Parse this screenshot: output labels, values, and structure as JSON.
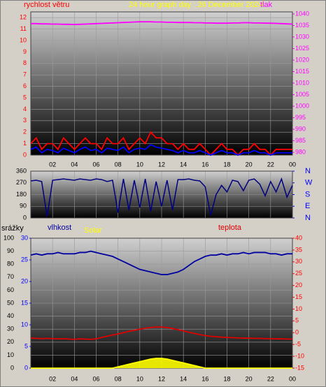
{
  "chart_data": [
    {
      "type": "line",
      "title": "24 hour graph day : 26 December 2024",
      "ylabel": "rychlost větru",
      "y2label": "tlak",
      "title_color": "#ffff00",
      "ylabel_color": "#ff0000",
      "y2label_color": "#ff00ff",
      "x": [
        0,
        0.5,
        1,
        1.5,
        2,
        2.5,
        3,
        3.5,
        4,
        4.5,
        5,
        5.5,
        6,
        6.5,
        7,
        7.5,
        8,
        8.5,
        9,
        9.5,
        10,
        10.5,
        11,
        11.5,
        12,
        12.5,
        13,
        13.5,
        14,
        14.5,
        15,
        15.5,
        16,
        16.5,
        17,
        17.5,
        18,
        18.5,
        19,
        19.5,
        20,
        20.5,
        21,
        21.5,
        22,
        22.5,
        23,
        23.5,
        24
      ],
      "xlim": [
        0,
        24
      ],
      "xticks": [
        {
          "value": 2,
          "label": "02"
        },
        {
          "value": 4,
          "label": "04"
        },
        {
          "value": 6,
          "label": "06"
        },
        {
          "value": 8,
          "label": "08"
        },
        10,
        12,
        14,
        16,
        18,
        20,
        22,
        {
          "value": 24,
          "label": "00"
        }
      ],
      "ylim": [
        0,
        12.5
      ],
      "yticks": [
        0,
        1,
        2,
        3,
        4,
        5,
        6,
        7,
        8,
        9,
        10,
        11,
        12
      ],
      "ytick_color": "#ff0000",
      "y2lim": [
        978.8,
        1040.9
      ],
      "y2ticks": [
        980,
        985,
        990,
        995,
        1000,
        1005,
        1010,
        1015,
        1020,
        1025,
        1030,
        1035,
        1040
      ],
      "y2tick_color": "#ff00ff",
      "grid": true,
      "series": [
        {
          "color": "#ff0000",
          "values": [
            1,
            1.5,
            0.5,
            1,
            1,
            0.5,
            1.5,
            1,
            0.5,
            1,
            1.5,
            1,
            1,
            0.5,
            1.5,
            1,
            1,
            1.5,
            0.5,
            1,
            1.5,
            1,
            2,
            1.5,
            1.5,
            1,
            1,
            0.5,
            1,
            0.5,
            0.5,
            1,
            0.5,
            0,
            0.5,
            1,
            0.5,
            0.5,
            0,
            0.5,
            0.5,
            1,
            0.5,
            0.5,
            0,
            0.5,
            0.5,
            0.5,
            0.5
          ]
        },
        {
          "color": "#0000ff",
          "values": [
            0.5,
            0.7,
            0.2,
            0.5,
            0.4,
            0.2,
            0.6,
            0.4,
            0.2,
            0.5,
            0.7,
            0.4,
            0.5,
            0.2,
            0.6,
            0.5,
            0.4,
            0.7,
            0.2,
            0.5,
            0.6,
            0.5,
            0.9,
            0.7,
            0.6,
            0.5,
            0.4,
            0.2,
            0.4,
            0.2,
            0.2,
            0.4,
            0.2,
            0,
            0.2,
            0.4,
            0.2,
            0.2,
            0,
            0.2,
            0.2,
            0.4,
            0.2,
            0.2,
            0,
            0.2,
            0.2,
            0.2,
            0.2
          ]
        },
        {
          "color": "#ff00ff",
          "axis": "y2",
          "values": [
            1035.8,
            1035.8,
            1035.7,
            1035.7,
            1035.6,
            1035.6,
            1035.5,
            1035.5,
            1035.4,
            1035.5,
            1035.6,
            1035.7,
            1035.8,
            1035.9,
            1036.0,
            1036.1,
            1036.2,
            1036.3,
            1036.4,
            1036.5,
            1036.6,
            1036.6,
            1036.6,
            1036.5,
            1036.5,
            1036.4,
            1036.4,
            1036.3,
            1036.3,
            1036.3,
            1036.2,
            1036.2,
            1036.1,
            1036.1,
            1036.0,
            1036.0,
            1036.0,
            1036.1,
            1036.1,
            1036.2,
            1036.2,
            1036.1,
            1036.1,
            1036.0,
            1036.0,
            1035.9,
            1035.8,
            1035.7,
            1035.6
          ]
        }
      ]
    },
    {
      "type": "line",
      "x": [
        0,
        0.5,
        1,
        1.5,
        2,
        2.5,
        3,
        3.5,
        4,
        4.5,
        5,
        5.5,
        6,
        6.5,
        7,
        7.5,
        8,
        8.5,
        9,
        9.5,
        10,
        10.5,
        11,
        11.5,
        12,
        12.5,
        13,
        13.5,
        14,
        14.5,
        15,
        15.5,
        16,
        16.5,
        17,
        17.5,
        18,
        18.5,
        19,
        19.5,
        20,
        20.5,
        21,
        21.5,
        22,
        22.5,
        23,
        23.5,
        24
      ],
      "xlim": [
        0,
        24
      ],
      "xticks": [
        2,
        4,
        6,
        8,
        10,
        12,
        14,
        16,
        18,
        20,
        22,
        24
      ],
      "xtick_labels": false,
      "ylim": [
        0,
        360
      ],
      "yticks": [
        0,
        90,
        180,
        270,
        360
      ],
      "ytick_color": "#000000",
      "y2lim": [
        0,
        360
      ],
      "y2ticks": [
        {
          "value": 0,
          "label": "N"
        },
        {
          "value": 90,
          "label": "E"
        },
        {
          "value": 180,
          "label": "S"
        },
        {
          "value": 270,
          "label": "W"
        },
        {
          "value": 360,
          "label": "N"
        }
      ],
      "y2tick_color": "#0000ff",
      "grid": true,
      "series": [
        {
          "color": "#000080",
          "values": [
            285,
            290,
            280,
            10,
            290,
            295,
            300,
            295,
            290,
            300,
            295,
            290,
            300,
            295,
            280,
            290,
            40,
            300,
            60,
            290,
            80,
            300,
            50,
            280,
            90,
            290,
            60,
            295,
            295,
            300,
            290,
            285,
            240,
            20,
            180,
            250,
            200,
            290,
            280,
            210,
            290,
            300,
            260,
            170,
            280,
            200,
            300,
            160,
            250
          ]
        }
      ]
    },
    {
      "type": "line",
      "ylabel": "srážky",
      "ylabel_color": "#000000",
      "x": [
        0,
        0.5,
        1,
        1.5,
        2,
        2.5,
        3,
        3.5,
        4,
        4.5,
        5,
        5.5,
        6,
        6.5,
        7,
        7.5,
        8,
        8.5,
        9,
        9.5,
        10,
        10.5,
        11,
        11.5,
        12,
        12.5,
        13,
        13.5,
        14,
        14.5,
        15,
        15.5,
        16,
        16.5,
        17,
        17.5,
        18,
        18.5,
        19,
        19.5,
        20,
        20.5,
        21,
        21.5,
        22,
        22.5,
        23,
        23.5,
        24
      ],
      "xlim": [
        0,
        24
      ],
      "xticks": [
        {
          "value": 2,
          "label": "02"
        },
        {
          "value": 4,
          "label": "04"
        },
        {
          "value": 6,
          "label": "06"
        },
        {
          "value": 8,
          "label": "08"
        },
        10,
        12,
        14,
        16,
        18,
        20,
        22,
        {
          "value": 24,
          "label": "00"
        }
      ],
      "ylim": [
        0,
        100
      ],
      "yticks": [
        0,
        10,
        20,
        30,
        40,
        50,
        60,
        70,
        80,
        90,
        100
      ],
      "ytick_color": "#000000",
      "y3lim": [
        0,
        30
      ],
      "y3ticks": [
        0,
        5,
        10,
        15,
        20,
        25,
        30
      ],
      "y3tick_color": "#0000ff",
      "y2lim": [
        -15,
        40
      ],
      "y2ticks": [
        -15,
        -10,
        -5,
        0,
        5,
        10,
        15,
        20,
        25,
        30,
        35,
        40
      ],
      "y2tick_color": "#ff0000",
      "grid": true,
      "series": [
        {
          "name": "vlhkost",
          "color": "#0000a0",
          "values": [
            87,
            88,
            87,
            88,
            88,
            89,
            88,
            88,
            88,
            89,
            89,
            90,
            89,
            88,
            87,
            86,
            84,
            82,
            80,
            78,
            76,
            75,
            74,
            73,
            72,
            72,
            73,
            74,
            76,
            79,
            82,
            84,
            86,
            87,
            87,
            88,
            87,
            88,
            88,
            89,
            88,
            89,
            89,
            89,
            88,
            88,
            87,
            88,
            88
          ]
        },
        {
          "name": "Solar",
          "color": "#ffff00",
          "fill": true,
          "values": [
            0,
            0,
            0,
            0,
            0,
            0,
            0,
            0,
            0,
            0,
            0,
            0,
            0,
            0,
            0,
            0,
            1,
            2,
            3,
            4,
            5,
            6,
            7,
            7.5,
            7.5,
            7,
            6,
            5,
            4,
            3,
            2,
            1,
            0,
            0,
            0,
            0,
            0,
            0,
            0,
            0,
            0,
            0,
            0,
            0,
            0,
            0,
            0,
            0,
            0
          ]
        },
        {
          "name": "teplota",
          "color": "#e00000",
          "axis": "y2",
          "values": [
            -2.3,
            -2.4,
            -2.5,
            -2.4,
            -2.5,
            -2.6,
            -2.5,
            -2.7,
            -2.8,
            -2.6,
            -2.7,
            -2.8,
            -2.6,
            -2.0,
            -1.5,
            -1.0,
            -0.5,
            0.0,
            0.6,
            1.0,
            1.5,
            1.9,
            2.2,
            2.4,
            2.4,
            2.2,
            1.8,
            1.3,
            0.8,
            0.2,
            -0.3,
            -0.8,
            -1.2,
            -1.5,
            -1.7,
            -1.9,
            -2.0,
            -2.1,
            -2.2,
            -2.3,
            -2.3,
            -2.4,
            -2.4,
            -2.5,
            -2.5,
            -2.6,
            -2.6,
            -2.7,
            -2.7
          ]
        }
      ]
    }
  ]
}
